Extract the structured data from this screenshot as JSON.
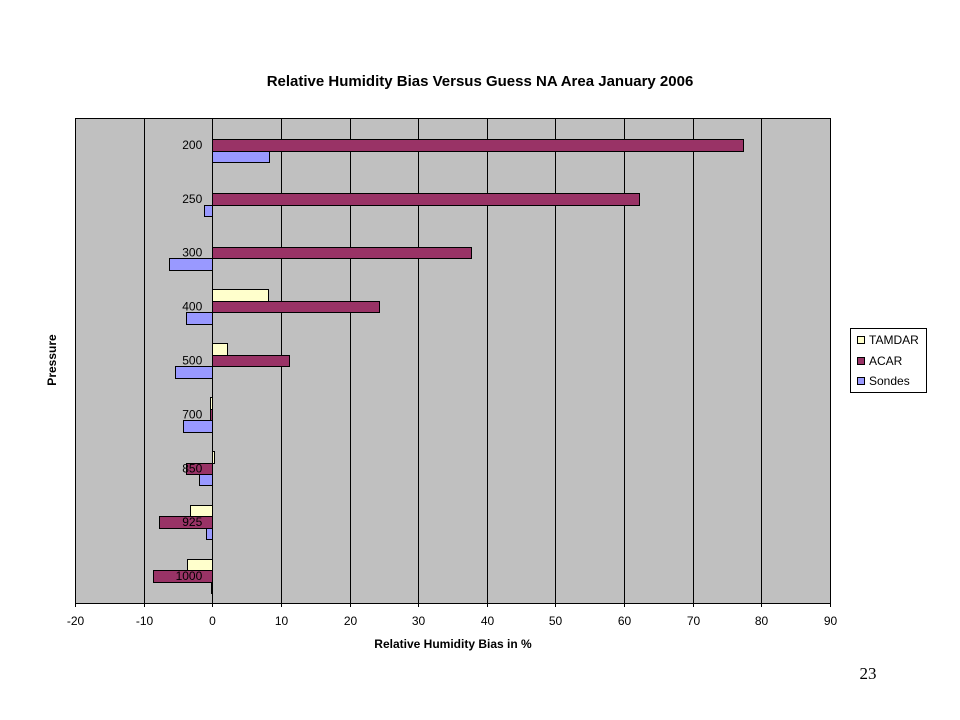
{
  "slide": {
    "page_number": "23"
  },
  "chart_data": {
    "type": "bar",
    "orientation": "horizontal",
    "title": "Relative Humidity Bias Versus Guess NA Area January 2006",
    "xlabel": "Relative Humidity Bias in %",
    "ylabel": "Pressure",
    "categories": [
      "200",
      "250",
      "300",
      "400",
      "500",
      "700",
      "850",
      "925",
      "1000"
    ],
    "series": [
      {
        "name": "TAMDAR",
        "color": "#FFFFCC",
        "values": [
          null,
          null,
          null,
          8.1,
          2.1,
          -0.3,
          0.2,
          -3.2,
          -3.7
        ]
      },
      {
        "name": "ACAR",
        "color": "#993366",
        "values": [
          77.3,
          62.2,
          37.7,
          24.3,
          11.2,
          -0.3,
          -3.8,
          -7.7,
          -8.7
        ]
      },
      {
        "name": "Sondes",
        "color": "#9999FF",
        "values": [
          8.3,
          -1.2,
          -6.3,
          -3.8,
          -5.4,
          -4.3,
          -1.9,
          -0.9,
          -0.2
        ]
      }
    ],
    "xlim": [
      -20,
      90
    ],
    "xticks": [
      -20,
      -10,
      0,
      10,
      20,
      30,
      40,
      50,
      60,
      70,
      80,
      90
    ],
    "grid": true,
    "legend_position": "right",
    "plot_background": "#C0C0C0"
  }
}
